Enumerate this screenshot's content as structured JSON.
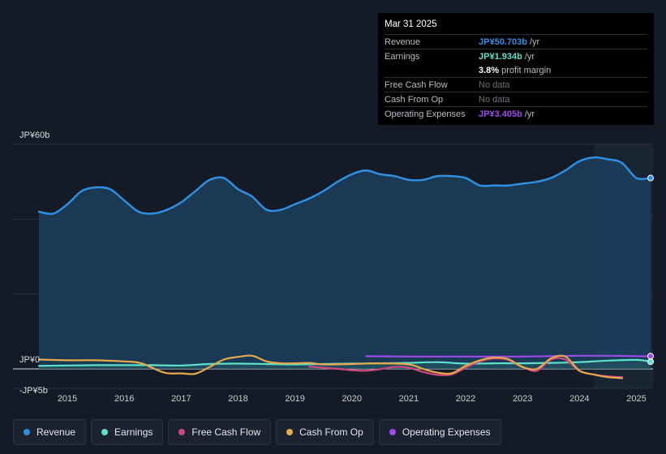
{
  "tooltip": {
    "date": "Mar 31 2025",
    "rows": {
      "revenue": {
        "label": "Revenue",
        "value": "JP¥50.703b",
        "unit": "/yr"
      },
      "earnings": {
        "label": "Earnings",
        "value": "JP¥1.934b",
        "unit": "/yr"
      },
      "margin": {
        "value": "3.8%",
        "unit": "profit margin"
      },
      "fcf": {
        "label": "Free Cash Flow",
        "value": "No data"
      },
      "cfo": {
        "label": "Cash From Op",
        "value": "No data"
      },
      "opex": {
        "label": "Operating Expenses",
        "value": "JP¥3.405b",
        "unit": "/yr"
      }
    }
  },
  "legend": {
    "revenue": "Revenue",
    "earnings": "Earnings",
    "fcf": "Free Cash Flow",
    "cfo": "Cash From Op",
    "opex": "Operating Expenses"
  },
  "colors": {
    "revenue": "#2f8fe0",
    "earnings": "#5ee0cc",
    "fcf": "#d1477e",
    "cfo": "#e8a94c",
    "opex": "#9b4be8",
    "background": "#151b26"
  },
  "chart_data": {
    "type": "area",
    "ylim": [
      -5,
      60
    ],
    "y_tick_labels": [
      "JP¥60b",
      "JP¥0",
      "-JP¥5b"
    ],
    "y_ticks": [
      60,
      0,
      -5
    ],
    "x_range": [
      2014.5,
      2025.25
    ],
    "x_tick_labels": [
      "2015",
      "2016",
      "2017",
      "2018",
      "2019",
      "2020",
      "2021",
      "2022",
      "2023",
      "2024",
      "2025"
    ],
    "x_ticks": [
      2015,
      2016,
      2017,
      2018,
      2019,
      2020,
      2021,
      2022,
      2023,
      2024,
      2025
    ],
    "forecast_start": 2024.25,
    "units": "JP¥ billions",
    "series": [
      {
        "name": "Revenue",
        "key": "revenue",
        "x": [
          2014.5,
          2014.75,
          2015.0,
          2015.25,
          2015.5,
          2015.75,
          2016.0,
          2016.25,
          2016.5,
          2016.75,
          2017.0,
          2017.25,
          2017.5,
          2017.75,
          2018.0,
          2018.25,
          2018.5,
          2018.75,
          2019.0,
          2019.25,
          2019.5,
          2019.75,
          2020.0,
          2020.25,
          2020.5,
          2020.75,
          2021.0,
          2021.25,
          2021.5,
          2021.75,
          2022.0,
          2022.25,
          2022.5,
          2022.75,
          2023.0,
          2023.25,
          2023.5,
          2023.75,
          2024.0,
          2024.25,
          2024.5,
          2024.75,
          2025.0,
          2025.25
        ],
        "values": [
          42,
          41.5,
          44,
          47.5,
          48.5,
          48,
          45,
          42,
          41.5,
          42.5,
          44.5,
          47.5,
          50.5,
          51,
          48,
          46,
          42.5,
          42.5,
          44,
          45.5,
          47.5,
          50,
          52,
          53,
          52,
          51.5,
          50.5,
          50.5,
          51.5,
          51.5,
          51,
          49,
          49,
          49,
          49.5,
          50,
          51,
          53,
          55.5,
          56.5,
          56,
          55,
          51,
          51
        ]
      },
      {
        "name": "Earnings",
        "key": "earnings",
        "x": [
          2014.5,
          2015.0,
          2015.5,
          2016.0,
          2016.5,
          2017.0,
          2017.5,
          2018.0,
          2018.5,
          2019.0,
          2019.5,
          2020.0,
          2020.5,
          2021.0,
          2021.5,
          2022.0,
          2022.5,
          2023.0,
          2023.5,
          2024.0,
          2024.5,
          2025.0,
          2025.25
        ],
        "values": [
          0.8,
          0.9,
          1.0,
          1.0,
          1.0,
          0.9,
          1.3,
          1.4,
          1.3,
          1.2,
          1.3,
          1.4,
          1.5,
          1.6,
          1.8,
          1.4,
          1.5,
          1.5,
          1.6,
          1.8,
          2.2,
          2.4,
          1.934
        ]
      },
      {
        "name": "Free Cash Flow",
        "key": "fcf",
        "x": [
          2019.25,
          2019.75,
          2020.25,
          2020.75,
          2021.0,
          2021.25,
          2021.5,
          2021.75,
          2022.0,
          2022.25,
          2022.5,
          2022.75,
          2023.0,
          2023.25,
          2023.5,
          2023.75,
          2024.0,
          2024.25,
          2024.5,
          2024.75
        ],
        "values": [
          0.6,
          0,
          -0.5,
          0.5,
          0.3,
          -0.8,
          -1.6,
          -1.5,
          0.3,
          2.0,
          2.8,
          2.4,
          0.5,
          -0.5,
          2.5,
          2.5,
          -0.5,
          -1.5,
          -2.0,
          -2.2
        ]
      },
      {
        "name": "Cash From Op",
        "key": "cfo",
        "x": [
          2014.5,
          2015.0,
          2015.5,
          2016.0,
          2016.3,
          2016.7,
          2017.0,
          2017.25,
          2017.5,
          2017.75,
          2018.0,
          2018.25,
          2018.5,
          2018.75,
          2019.0,
          2019.25,
          2019.5,
          2020.0,
          2020.5,
          2021.0,
          2021.25,
          2021.5,
          2021.75,
          2022.0,
          2022.25,
          2022.5,
          2022.75,
          2023.0,
          2023.25,
          2023.5,
          2023.75,
          2024.0,
          2024.25,
          2024.5,
          2024.75
        ],
        "values": [
          2.5,
          2.3,
          2.3,
          2.0,
          1.5,
          -1.0,
          -1.2,
          -1.3,
          0.5,
          2.5,
          3.2,
          3.5,
          2.0,
          1.5,
          1.5,
          1.6,
          1.2,
          1.3,
          1.5,
          1.2,
          0,
          -1.0,
          -1.2,
          0.8,
          2.3,
          3.0,
          2.6,
          0.5,
          0.0,
          2.8,
          3.3,
          -0.5,
          -1.5,
          -2.2,
          -2.5
        ]
      },
      {
        "name": "Operating Expenses",
        "key": "opex",
        "x": [
          2020.25,
          2021.0,
          2021.5,
          2022.0,
          2022.5,
          2023.0,
          2023.5,
          2024.0,
          2024.5,
          2025.0,
          2025.25
        ],
        "values": [
          3.4,
          3.3,
          3.3,
          3.3,
          3.3,
          3.3,
          3.4,
          3.5,
          3.5,
          3.4,
          3.405
        ]
      }
    ]
  }
}
